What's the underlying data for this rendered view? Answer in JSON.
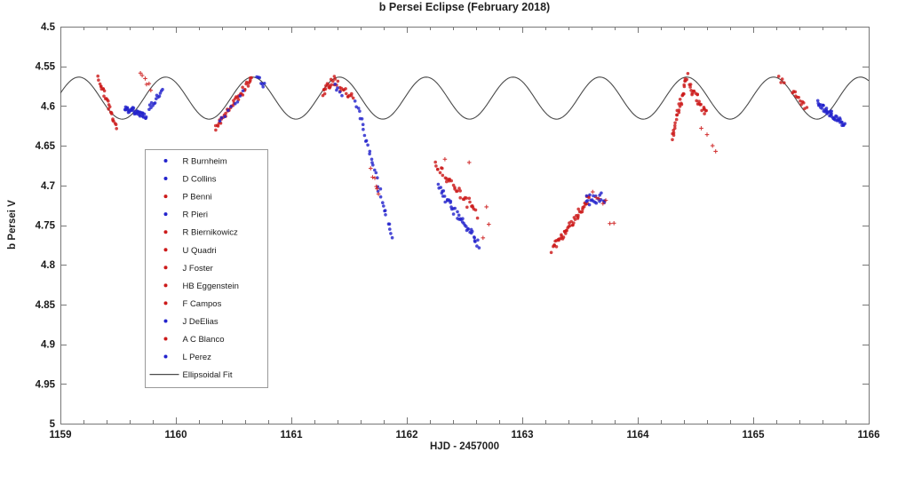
{
  "page": {
    "background": "#ffffff"
  },
  "chart_data": {
    "type": "scatter",
    "title": "b Persei Eclipse (February 2018)",
    "xlabel": "HJD - 2457000",
    "ylabel": "b Persei V",
    "xlim": [
      1159,
      1166
    ],
    "ylim": [
      4.5,
      5.0
    ],
    "y_axis_inverted_magnitude": true,
    "grid": false,
    "x_tick_values": [
      1159,
      1160,
      1161,
      1162,
      1163,
      1164,
      1165,
      1166
    ],
    "x_tick_labels": [
      "1159",
      "1160",
      "1161",
      "1162",
      "1163",
      "1164",
      "1165",
      "1166"
    ],
    "x_minor_tick_step": 0.2,
    "y_tick_values": [
      4.5,
      4.55,
      4.6,
      4.65,
      4.7,
      4.75,
      4.8,
      4.85,
      4.9,
      4.95,
      5.0
    ],
    "y_tick_labels": [
      "4.5",
      "4.55",
      "4.6",
      "4.65",
      "4.7",
      "4.75",
      "4.8",
      "4.85",
      "4.9",
      "4.95",
      "5"
    ],
    "colors": {
      "red": "#cc1a1a",
      "blue": "#2323cc",
      "fit_line": "#4a4a4a",
      "axis": "#777777",
      "text": "#1a1a1a"
    },
    "legend_position": "middle-left",
    "legend_entries": [
      {
        "label": "R Burnheim",
        "color": "blue",
        "marker": "dot"
      },
      {
        "label": "D Collins",
        "color": "blue",
        "marker": "dot"
      },
      {
        "label": "P Benni",
        "color": "red",
        "marker": "dot"
      },
      {
        "label": "R Pieri",
        "color": "blue",
        "marker": "dot"
      },
      {
        "label": "R Biernikowicz",
        "color": "red",
        "marker": "dot"
      },
      {
        "label": "U Quadri",
        "color": "red",
        "marker": "dot"
      },
      {
        "label": "J Foster",
        "color": "red",
        "marker": "dot"
      },
      {
        "label": "HB Eggenstein",
        "color": "red",
        "marker": "dot"
      },
      {
        "label": "F Campos",
        "color": "red",
        "marker": "dot"
      },
      {
        "label": "J DeElias",
        "color": "blue",
        "marker": "dot"
      },
      {
        "label": "A C Blanco",
        "color": "red",
        "marker": "dot"
      },
      {
        "label": "L Perez",
        "color": "blue",
        "marker": "dot"
      },
      {
        "label": "Ellipsoidal Fit",
        "color": "black",
        "marker": "line"
      }
    ],
    "ellipsoidal_fit": {
      "model": "V(t) = mean_v - amplitude_v * cos(2*pi*(t - brightest_hjd)/period_days)",
      "mean_v": 4.59,
      "amplitude_v": 0.0265,
      "period_days": 0.752,
      "brightest_hjd": 1159.16,
      "brightest_v": 4.5635,
      "faintest_v": 4.6165
    },
    "eclipse": {
      "ingress_start_hjd": 1161.55,
      "deepest_observed_hjd": 1161.88,
      "deepest_observed_v": 4.77,
      "egress_end_hjd": 1163.7
    },
    "scatter_clusters": [
      {
        "id": "night1-red-descent",
        "color": "red",
        "marker": "dot",
        "n": 26,
        "t": [
          1159.325,
          1159.49
        ],
        "v": [
          4.563,
          4.628
        ],
        "jt": 0.01,
        "jv": 0.006,
        "seed": 11
      },
      {
        "id": "night1-blue-trough",
        "color": "blue",
        "marker": "dot",
        "n": 40,
        "t": [
          1159.555,
          1159.745
        ],
        "v": [
          4.602,
          4.613
        ],
        "jt": 0.008,
        "jv": 0.005,
        "seed": 12
      },
      {
        "id": "night1-blue-rise",
        "color": "blue",
        "marker": "dot",
        "n": 14,
        "t": [
          1159.76,
          1159.885
        ],
        "v": [
          4.606,
          4.578
        ],
        "jt": 0.006,
        "jv": 0.005,
        "seed": 13
      },
      {
        "id": "night1-red-scatter-high",
        "color": "red",
        "marker": "plus",
        "n": 6,
        "t": [
          1159.685,
          1159.8
        ],
        "v": [
          4.556,
          4.58
        ],
        "jt": 0.012,
        "jv": 0.01,
        "seed": 14
      },
      {
        "id": "night2-red-rise",
        "color": "red",
        "marker": "dot",
        "n": 42,
        "t": [
          1160.335,
          1160.665
        ],
        "v": [
          4.629,
          4.564
        ],
        "jt": 0.01,
        "jv": 0.005,
        "seed": 15
      },
      {
        "id": "night2-blue-mixed",
        "color": "blue",
        "marker": "dot",
        "n": 9,
        "t": [
          1160.365,
          1160.6
        ],
        "v": [
          4.623,
          4.581
        ],
        "jt": 0.012,
        "jv": 0.006,
        "seed": 16
      },
      {
        "id": "night2-blue-peak",
        "color": "blue",
        "marker": "dot",
        "n": 7,
        "t": [
          1160.695,
          1160.775
        ],
        "v": [
          4.562,
          4.575
        ],
        "jt": 0.006,
        "jv": 0.005,
        "seed": 17
      },
      {
        "id": "night3-red-peak",
        "color": "red",
        "marker": "dot",
        "n": 14,
        "t": [
          1161.27,
          1161.36
        ],
        "v": [
          4.583,
          4.568
        ],
        "jt": 0.01,
        "jv": 0.006,
        "seed": 18
      },
      {
        "id": "night3-red-peak-descent",
        "color": "red",
        "marker": "dot",
        "n": 18,
        "t": [
          1161.36,
          1161.54
        ],
        "v": [
          4.568,
          4.592
        ],
        "jt": 0.01,
        "jv": 0.007,
        "seed": 19
      },
      {
        "id": "night3-blue-peak",
        "color": "blue",
        "marker": "dot",
        "n": 5,
        "t": [
          1161.37,
          1161.44
        ],
        "v": [
          4.574,
          4.59
        ],
        "jt": 0.008,
        "jv": 0.006,
        "seed": 20
      },
      {
        "id": "night3-blue-ingress",
        "color": "blue",
        "marker": "dot",
        "n": 34,
        "t": [
          1161.555,
          1161.875
        ],
        "v": [
          4.59,
          4.769
        ],
        "jt": 0.01,
        "jv": 0.006,
        "seed": 21
      },
      {
        "id": "night3-red-ingress",
        "color": "red",
        "marker": "plus",
        "n": 6,
        "t": [
          1161.685,
          1161.775
        ],
        "v": [
          4.678,
          4.714
        ],
        "jt": 0.014,
        "jv": 0.01,
        "seed": 22
      },
      {
        "id": "night4-red-descent",
        "color": "red",
        "marker": "dot",
        "n": 36,
        "t": [
          1162.24,
          1162.61
        ],
        "v": [
          4.673,
          4.736
        ],
        "jt": 0.012,
        "jv": 0.007,
        "seed": 23
      },
      {
        "id": "night4-blue-descent",
        "color": "blue",
        "marker": "dot",
        "n": 44,
        "t": [
          1162.27,
          1162.63
        ],
        "v": [
          4.702,
          4.775
        ],
        "jt": 0.012,
        "jv": 0.007,
        "seed": 24
      },
      {
        "id": "night4-red-outliers",
        "color": "red",
        "marker": "plus",
        "points": [
          [
            1162.33,
            4.667
          ],
          [
            1162.54,
            4.671
          ],
          [
            1162.69,
            4.727
          ],
          [
            1162.71,
            4.749
          ],
          [
            1162.66,
            4.766
          ]
        ]
      },
      {
        "id": "night5-red-egress",
        "color": "red",
        "marker": "dot",
        "n": 48,
        "t": [
          1163.255,
          1163.585
        ],
        "v": [
          4.7815,
          4.716
        ],
        "jt": 0.01,
        "jv": 0.006,
        "seed": 26
      },
      {
        "id": "night5-blue-top",
        "color": "blue",
        "marker": "dot",
        "n": 20,
        "t": [
          1163.545,
          1163.72
        ],
        "v": [
          4.722,
          4.712
        ],
        "jt": 0.01,
        "jv": 0.012,
        "seed": 27
      },
      {
        "id": "night5-red-scatter",
        "color": "red",
        "marker": "plus",
        "n": 7,
        "t": [
          1163.6,
          1163.8
        ],
        "v": [
          4.697,
          4.748
        ],
        "jt": 0.016,
        "jv": 0.016,
        "seed": 28
      },
      {
        "id": "night6-red-peak-streak",
        "color": "red",
        "marker": "dot",
        "n": 30,
        "t": [
          1164.295,
          1164.43
        ],
        "v": [
          4.642,
          4.561
        ],
        "jt": 0.008,
        "jv": 0.007,
        "seed": 29
      },
      {
        "id": "night6-red-descent",
        "color": "red",
        "marker": "dot",
        "n": 24,
        "t": [
          1164.44,
          1164.6
        ],
        "v": [
          4.576,
          4.61
        ],
        "jt": 0.01,
        "jv": 0.008,
        "seed": 30
      },
      {
        "id": "night6-red-tail",
        "color": "red",
        "marker": "plus",
        "points": [
          [
            1164.55,
            4.628
          ],
          [
            1164.6,
            4.636
          ],
          [
            1164.648,
            4.65
          ],
          [
            1164.675,
            4.657
          ]
        ]
      },
      {
        "id": "night7-red-peak",
        "color": "red",
        "marker": "dot",
        "n": 4,
        "t": [
          1165.215,
          1165.275
        ],
        "v": [
          4.561,
          4.574
        ],
        "jt": 0.006,
        "jv": 0.005,
        "seed": 32
      },
      {
        "id": "night7-red-descent",
        "color": "red",
        "marker": "dot",
        "n": 12,
        "t": [
          1165.335,
          1165.465
        ],
        "v": [
          4.579,
          4.604
        ],
        "jt": 0.008,
        "jv": 0.005,
        "seed": 33
      },
      {
        "id": "night7-blue-trough",
        "color": "blue",
        "marker": "dot",
        "n": 48,
        "t": [
          1165.555,
          1165.795
        ],
        "v": [
          4.596,
          4.624
        ],
        "jt": 0.008,
        "jv": 0.005,
        "seed": 34
      }
    ]
  }
}
